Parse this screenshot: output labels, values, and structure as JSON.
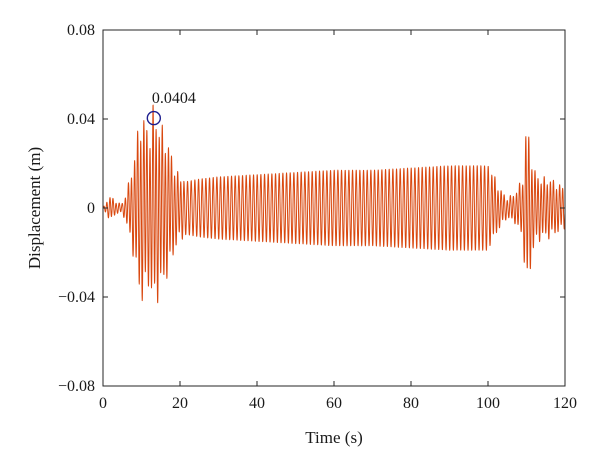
{
  "chart_data": {
    "type": "line",
    "xlabel": "Time (s)",
    "ylabel": "Displacement (m)",
    "xlim": [
      0,
      120
    ],
    "ylim": [
      -0.08,
      0.08
    ],
    "xticks": [
      0,
      20,
      40,
      60,
      80,
      100,
      120
    ],
    "yticks": [
      -0.08,
      -0.04,
      0,
      0.04,
      0.08
    ],
    "xtick_labels": [
      "0",
      "20",
      "40",
      "60",
      "80",
      "100",
      "120"
    ],
    "ytick_labels": [
      "−0.08",
      "−0.04",
      "0",
      "0.04",
      "0.08"
    ],
    "grid": false,
    "box": true,
    "series": [
      {
        "color": "#d9480f",
        "description_points": {
          "x": [
            0,
            1,
            2,
            3,
            4,
            5,
            6,
            7,
            8,
            9,
            10,
            11,
            12,
            13,
            14,
            15,
            16,
            17,
            18,
            19,
            20,
            22,
            25,
            30,
            40,
            50,
            60,
            70,
            80,
            90,
            100,
            101,
            103,
            105,
            107,
            109,
            110,
            111,
            112,
            114,
            116,
            118,
            120
          ],
          "envelope": [
            0.0,
            0.003,
            0.005,
            0.003,
            0.002,
            0.002,
            0.006,
            0.012,
            0.02,
            0.03,
            0.038,
            0.035,
            0.03,
            0.04,
            0.037,
            0.033,
            0.03,
            0.026,
            0.02,
            0.016,
            0.012,
            0.012,
            0.013,
            0.014,
            0.015,
            0.016,
            0.017,
            0.017,
            0.018,
            0.019,
            0.019,
            0.015,
            0.008,
            0.004,
            0.006,
            0.012,
            0.035,
            0.025,
            0.015,
            0.012,
            0.012,
            0.01,
            0.008
          ]
        }
      }
    ],
    "annotations": [
      {
        "x": 13.2,
        "y": 0.0404,
        "label": "0.0404",
        "marker": "circle",
        "marker_color": "#1f1f8f"
      }
    ]
  }
}
